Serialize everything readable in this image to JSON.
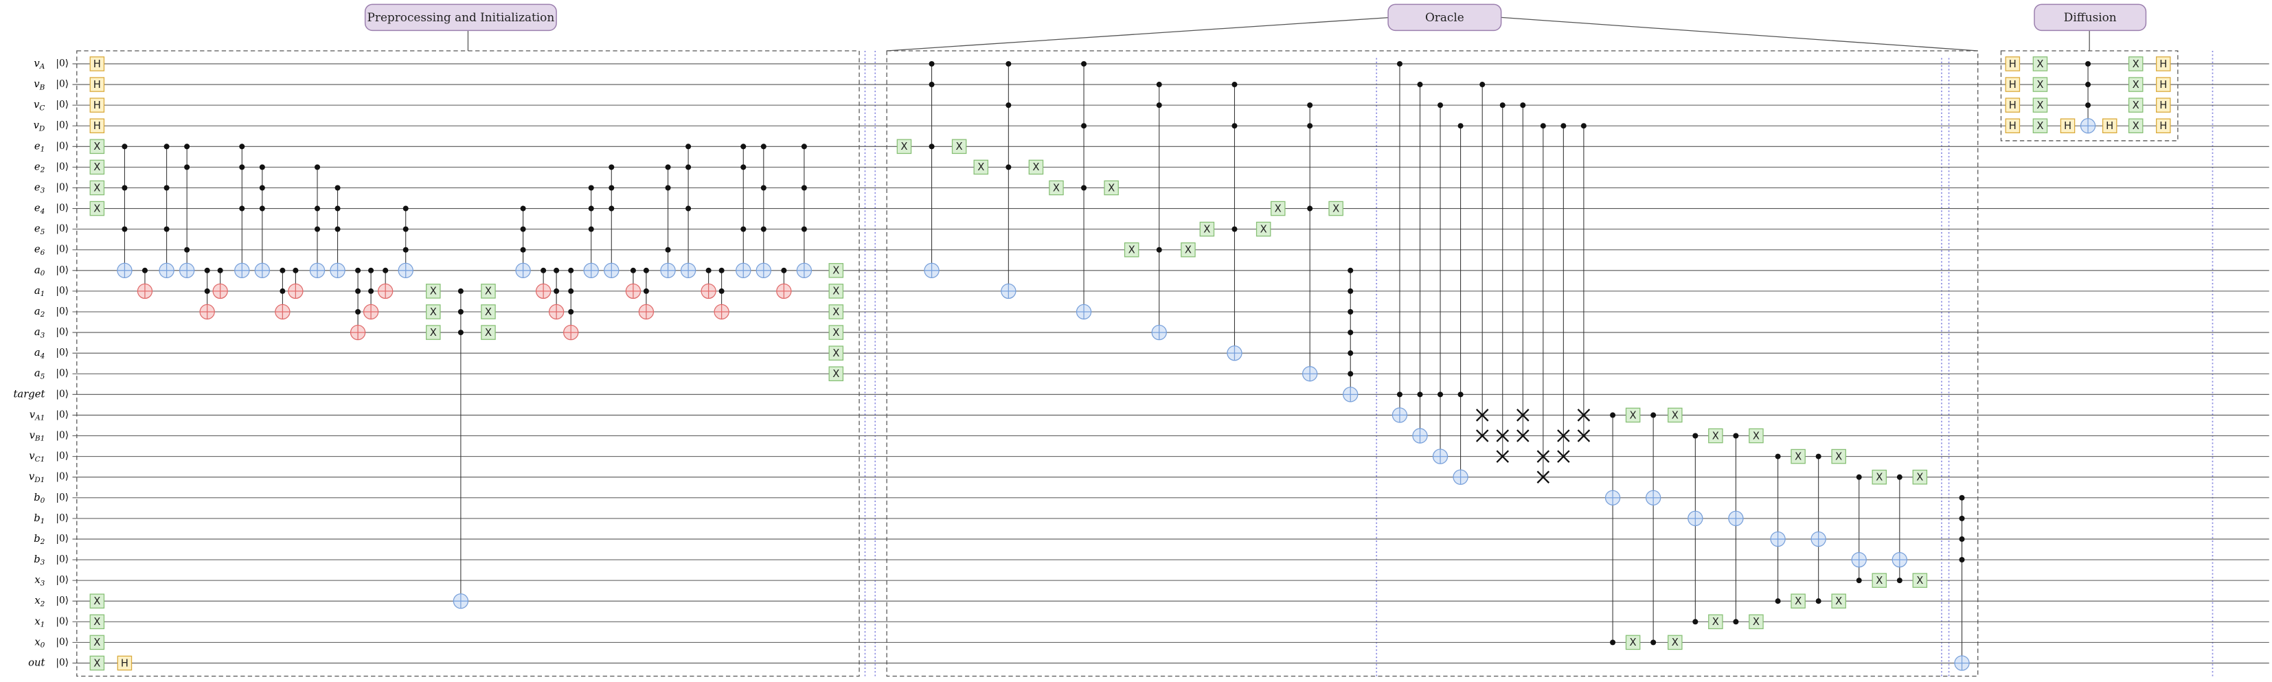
{
  "sections": [
    "Preprocessing and Initialization",
    "Oracle",
    "Diffusion"
  ],
  "ket": "|0⟩",
  "gate_labels": {
    "hadamard": "H",
    "pauli_x": "X"
  },
  "wires": [
    {
      "name": "v",
      "sub": "A"
    },
    {
      "name": "v",
      "sub": "B"
    },
    {
      "name": "v",
      "sub": "C"
    },
    {
      "name": "v",
      "sub": "D"
    },
    {
      "name": "e",
      "sub": "1"
    },
    {
      "name": "e",
      "sub": "2"
    },
    {
      "name": "e",
      "sub": "3"
    },
    {
      "name": "e",
      "sub": "4"
    },
    {
      "name": "e",
      "sub": "5"
    },
    {
      "name": "e",
      "sub": "6"
    },
    {
      "name": "a",
      "sub": "0"
    },
    {
      "name": "a",
      "sub": "1"
    },
    {
      "name": "a",
      "sub": "2"
    },
    {
      "name": "a",
      "sub": "3"
    },
    {
      "name": "a",
      "sub": "4"
    },
    {
      "name": "a",
      "sub": "5"
    },
    {
      "name": "target"
    },
    {
      "name": "v",
      "sub": "A1"
    },
    {
      "name": "v",
      "sub": "B1"
    },
    {
      "name": "v",
      "sub": "C1"
    },
    {
      "name": "v",
      "sub": "D1"
    },
    {
      "name": "b",
      "sub": "0"
    },
    {
      "name": "b",
      "sub": "1"
    },
    {
      "name": "b",
      "sub": "2"
    },
    {
      "name": "b",
      "sub": "3"
    },
    {
      "name": "x",
      "sub": "3"
    },
    {
      "name": "x",
      "sub": "2"
    },
    {
      "name": "x",
      "sub": "1"
    },
    {
      "name": "x",
      "sub": "0"
    },
    {
      "name": "out"
    }
  ]
}
